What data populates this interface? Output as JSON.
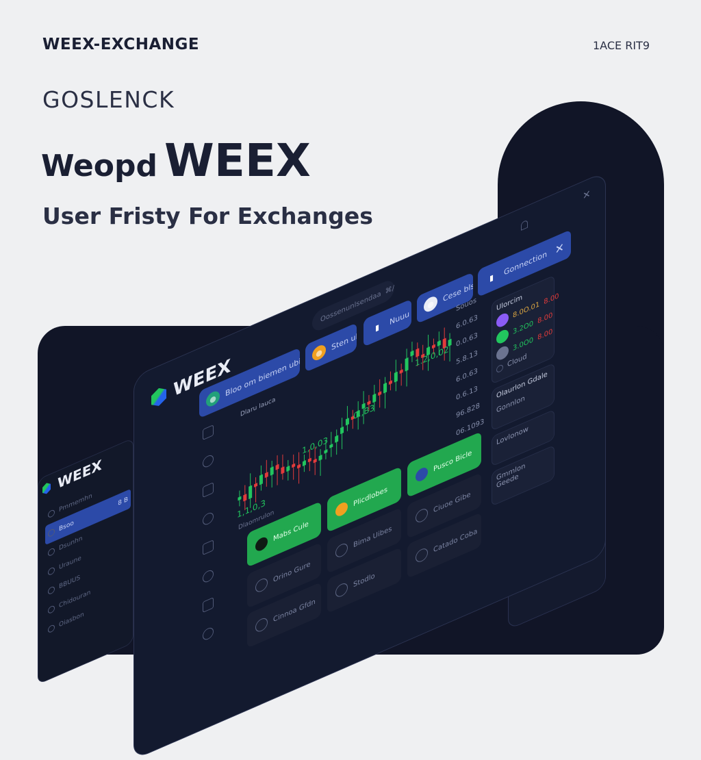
{
  "hero": {
    "brand": "WEEX-EXCHANGE",
    "corner_text": "1ACE RIT9",
    "eyebrow": "GOSLENCK",
    "headline_a": "Weopd",
    "headline_b": "WEEX",
    "subtitle": "User Fristy For Exchanges"
  },
  "app": {
    "logo": "WEEX",
    "search_placeholder": "Oossenunlsendaa",
    "search_hint": "⌘/",
    "tabs": [
      {
        "label": "Bloo om biemen ubis",
        "icon": "coin-icon",
        "color": "#22a07a"
      },
      {
        "label": "Sten ulds",
        "icon": "bitcoin-icon",
        "color": "#f0a020"
      },
      {
        "label": "Nuuu",
        "icon": "wallet-icon",
        "color": ""
      },
      {
        "label": "Cese bls",
        "icon": "coin-icon",
        "color": "#e9ecf5"
      },
      {
        "label": "Gonnection",
        "icon": "signal-icon",
        "color": ""
      }
    ],
    "chart_label": "Dlaru lauca",
    "chart_values": [
      "1.2,0,02",
      "0.,B3",
      "1,0,03",
      "1,1,0,3"
    ],
    "closes": [
      50,
      46,
      54,
      52,
      58,
      55,
      60,
      57,
      53,
      56,
      54,
      52,
      55,
      53,
      51,
      54,
      56,
      58,
      62,
      66,
      70,
      68,
      72,
      75,
      73,
      78,
      76,
      82,
      80,
      86,
      84,
      92,
      95,
      90,
      88,
      93,
      91,
      94,
      88,
      92
    ],
    "prices": [
      "Souos",
      "6.0.63",
      "0.0.63",
      "5.8.13",
      "6.0.63",
      "0.6.13",
      "96.828",
      "06.1093"
    ],
    "watchlist": {
      "title": "Ulorcim",
      "rows": [
        {
          "a": "8.0O.01",
          "b": "8.00",
          "color": "#8b5cf6"
        },
        {
          "a": "3.2O0",
          "b": "8.00",
          "color": "#22c55e"
        },
        {
          "a": "3.0O0",
          "b": "8.00",
          "color": "#6b7390"
        }
      ],
      "footer": "Cloud"
    },
    "panel2": {
      "title": "Olaurlon Gdale",
      "item": "Gonnlon",
      "hint": "Vg"
    },
    "panel3": "Lovlonow",
    "panel4": "Gmmlon Geede",
    "actions": [
      "Mabs Cule",
      "Plicdlobes",
      "Pusco Bicle"
    ],
    "cards": [
      "Orino Gure",
      "Bima Uibes",
      "Ciuoe Gibe",
      "Cinnoa Gfdn",
      "Stodlo",
      "Catado Coba"
    ],
    "status": "Dlaomrulon"
  },
  "left_panel": {
    "logo": "WEEX",
    "items": [
      "Pmmemhn",
      "Bsoo",
      "Dsunhn",
      "Uraune",
      "BBUUS",
      "Chidouran",
      "Oiasbon"
    ],
    "value": "8 B"
  },
  "colors": {
    "accent_blue": "#2c4aa8",
    "green": "#22a84f",
    "red": "#e23b3b",
    "dark": "#111527"
  }
}
